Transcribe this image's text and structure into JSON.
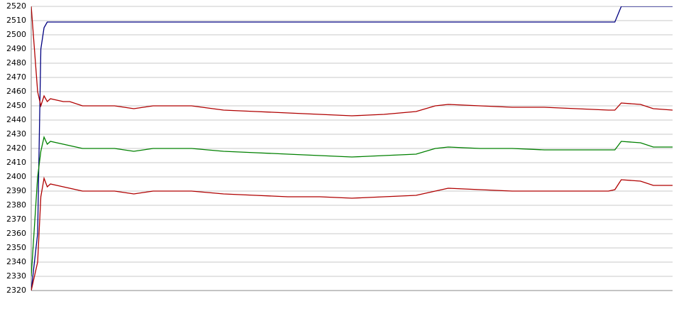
{
  "chart_data": {
    "type": "line",
    "x": [
      0,
      1,
      1.5,
      2,
      2.5,
      3,
      4,
      5,
      6,
      8,
      10,
      13,
      16,
      19,
      22,
      25,
      30,
      35,
      40,
      45,
      50,
      55,
      60,
      63,
      65,
      70,
      75,
      80,
      85,
      90,
      91,
      92,
      95,
      97,
      100
    ],
    "xlim": [
      0,
      100
    ],
    "ylim": [
      2320,
      2520
    ],
    "yticks": [
      2320,
      2330,
      2340,
      2350,
      2360,
      2370,
      2380,
      2390,
      2400,
      2410,
      2420,
      2430,
      2440,
      2450,
      2460,
      2470,
      2480,
      2490,
      2500,
      2510,
      2520
    ],
    "grid": true,
    "series": [
      {
        "color": "#000080",
        "values": [
          2320,
          2360,
          2490,
          2505,
          2509,
          2509,
          2509,
          2509,
          2509,
          2509,
          2509,
          2509,
          2509,
          2509,
          2509,
          2509,
          2509,
          2509,
          2509,
          2509,
          2509,
          2509,
          2509,
          2509,
          2509,
          2509,
          2509,
          2509,
          2509,
          2509,
          2509,
          2520,
          2520,
          2520,
          2520
        ]
      },
      {
        "color": "#b00000",
        "values": [
          2520,
          2460,
          2450,
          2457,
          2453,
          2455,
          2454,
          2453,
          2453,
          2450,
          2450,
          2450,
          2448,
          2450,
          2450,
          2450,
          2447,
          2446,
          2445,
          2444,
          2443,
          2444,
          2446,
          2450,
          2451,
          2450,
          2449,
          2449,
          2448,
          2447,
          2447,
          2452,
          2451,
          2448,
          2447
        ]
      },
      {
        "color": "#008000",
        "values": [
          2330,
          2400,
          2418,
          2428,
          2423,
          2425,
          2424,
          2423,
          2422,
          2420,
          2420,
          2420,
          2418,
          2420,
          2420,
          2420,
          2418,
          2417,
          2416,
          2415,
          2414,
          2415,
          2416,
          2420,
          2421,
          2420,
          2420,
          2419,
          2419,
          2419,
          2419,
          2425,
          2424,
          2421,
          2421
        ]
      },
      {
        "color": "#b00000",
        "values": [
          2320,
          2340,
          2386,
          2399,
          2393,
          2395,
          2394,
          2393,
          2392,
          2390,
          2390,
          2390,
          2388,
          2390,
          2390,
          2390,
          2388,
          2387,
          2386,
          2386,
          2385,
          2386,
          2387,
          2390,
          2392,
          2391,
          2390,
          2390,
          2390,
          2390,
          2391,
          2398,
          2397,
          2394,
          2394
        ]
      }
    ]
  }
}
